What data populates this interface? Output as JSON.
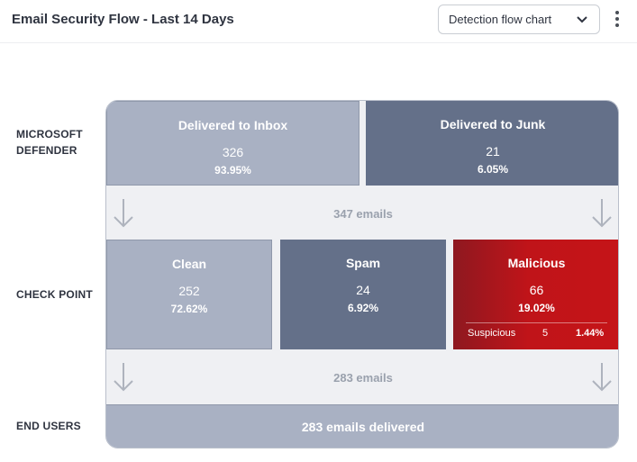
{
  "header": {
    "title": "Email Security Flow - Last 14 Days",
    "view_select": {
      "value": "Detection flow chart",
      "icon": "chevron-down-icon"
    },
    "menu_icon": "more-vertical-icon"
  },
  "rows": {
    "microsoft_defender": "MICROSOFT DEFENDER",
    "check_point": "CHECK POINT",
    "end_users": "END USERS"
  },
  "defender": {
    "inbox": {
      "title": "Delivered to Inbox",
      "count": "326",
      "percent": "93.95%"
    },
    "junk": {
      "title": "Delivered to Junk",
      "count": "21",
      "percent": "6.05%"
    },
    "flow_label": "347 emails"
  },
  "checkpoint": {
    "clean": {
      "title": "Clean",
      "count": "252",
      "percent": "72.62%"
    },
    "spam": {
      "title": "Spam",
      "count": "24",
      "percent": "6.92%"
    },
    "malicious": {
      "title": "Malicious",
      "count": "66",
      "percent": "19.02%",
      "suspicious": {
        "label": "Suspicious",
        "count": "5",
        "percent": "1.44%"
      }
    },
    "flow_label": "283 emails"
  },
  "end_users": {
    "label": "283 emails delivered"
  },
  "colors": {
    "light_box": "#a9b1c3",
    "dark_box": "#647089",
    "malicious": "#c01419",
    "flow_bg": "#eff0f3",
    "arrow": "#aeb3bd"
  }
}
